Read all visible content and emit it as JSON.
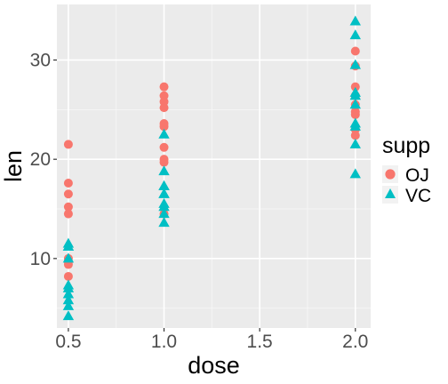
{
  "chart_data": {
    "type": "scatter",
    "xlabel": "dose",
    "ylabel": "len",
    "xlim": [
      0.44,
      2.08
    ],
    "ylim": [
      3.0,
      35.6
    ],
    "x_ticks": [
      0.5,
      1.0,
      1.5,
      2.0
    ],
    "x_tick_labels": [
      "0.5",
      "1.0",
      "1.5",
      "2.0"
    ],
    "y_ticks": [
      10,
      20,
      30
    ],
    "y_tick_labels": [
      "10",
      "20",
      "30"
    ],
    "grid": true,
    "legend": {
      "title": "supp",
      "position": "right"
    },
    "series": [
      {
        "name": "OJ",
        "color": "#F8766D",
        "shape": "circle",
        "points": [
          [
            0.5,
            15.2
          ],
          [
            0.5,
            21.5
          ],
          [
            0.5,
            17.6
          ],
          [
            0.5,
            9.7
          ],
          [
            0.5,
            14.5
          ],
          [
            0.5,
            10.0
          ],
          [
            0.5,
            8.2
          ],
          [
            0.5,
            9.4
          ],
          [
            0.5,
            16.5
          ],
          [
            0.5,
            9.7
          ],
          [
            1.0,
            19.7
          ],
          [
            1.0,
            23.3
          ],
          [
            1.0,
            23.6
          ],
          [
            1.0,
            26.4
          ],
          [
            1.0,
            20.0
          ],
          [
            1.0,
            25.2
          ],
          [
            1.0,
            25.8
          ],
          [
            1.0,
            21.2
          ],
          [
            1.0,
            14.5
          ],
          [
            1.0,
            27.3
          ],
          [
            2.0,
            25.5
          ],
          [
            2.0,
            26.4
          ],
          [
            2.0,
            22.4
          ],
          [
            2.0,
            24.5
          ],
          [
            2.0,
            24.8
          ],
          [
            2.0,
            30.9
          ],
          [
            2.0,
            26.4
          ],
          [
            2.0,
            27.3
          ],
          [
            2.0,
            29.4
          ],
          [
            2.0,
            23.0
          ]
        ]
      },
      {
        "name": "VC",
        "color": "#00BFC4",
        "shape": "triangle",
        "points": [
          [
            0.5,
            4.2
          ],
          [
            0.5,
            11.5
          ],
          [
            0.5,
            7.3
          ],
          [
            0.5,
            5.8
          ],
          [
            0.5,
            6.4
          ],
          [
            0.5,
            10.0
          ],
          [
            0.5,
            11.2
          ],
          [
            0.5,
            11.2
          ],
          [
            0.5,
            5.2
          ],
          [
            0.5,
            7.0
          ],
          [
            1.0,
            16.5
          ],
          [
            1.0,
            16.5
          ],
          [
            1.0,
            15.2
          ],
          [
            1.0,
            17.3
          ],
          [
            1.0,
            22.5
          ],
          [
            1.0,
            17.3
          ],
          [
            1.0,
            13.6
          ],
          [
            1.0,
            14.5
          ],
          [
            1.0,
            18.8
          ],
          [
            1.0,
            15.5
          ],
          [
            2.0,
            23.6
          ],
          [
            2.0,
            18.5
          ],
          [
            2.0,
            33.9
          ],
          [
            2.0,
            25.5
          ],
          [
            2.0,
            26.4
          ],
          [
            2.0,
            32.5
          ],
          [
            2.0,
            26.7
          ],
          [
            2.0,
            21.5
          ],
          [
            2.0,
            23.3
          ],
          [
            2.0,
            29.5
          ]
        ]
      }
    ]
  }
}
